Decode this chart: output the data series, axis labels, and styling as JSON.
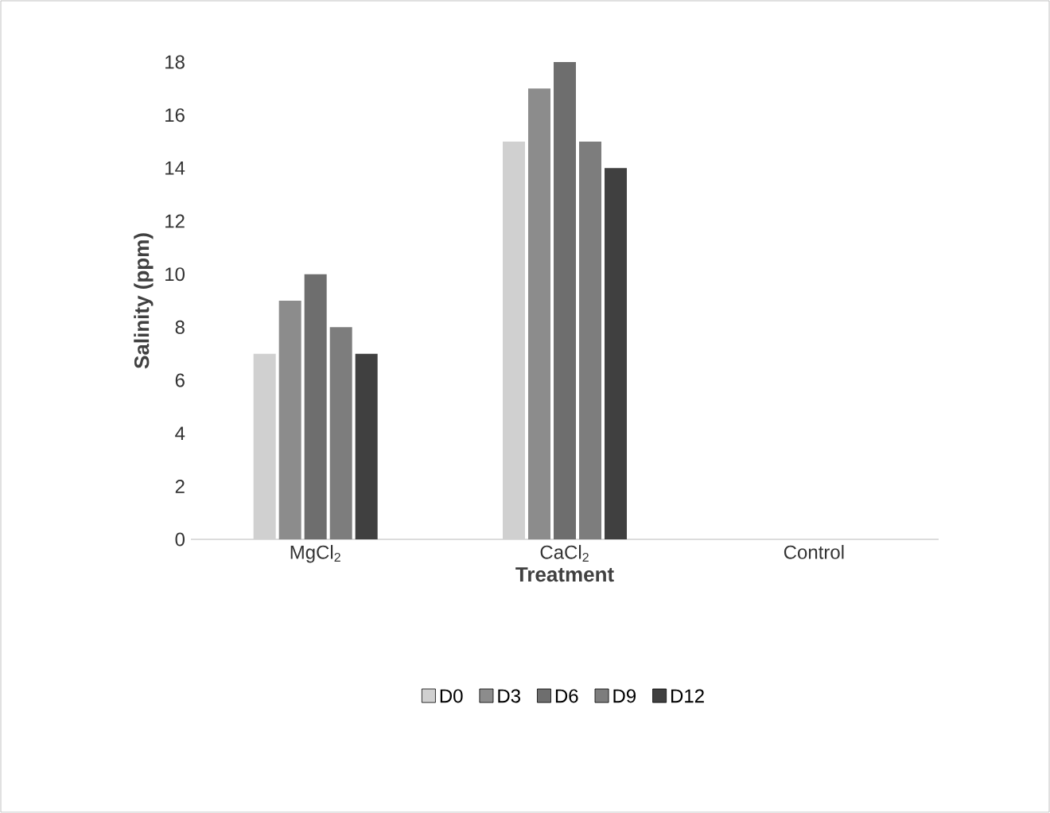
{
  "chart_data": {
    "type": "bar",
    "xlabel": "Treatment",
    "ylabel": "Salinity (ppm)",
    "categories": [
      "MgCl$_{2}$",
      "CaCl$_{2}$",
      "Control"
    ],
    "series": [
      {
        "name": "D0",
        "color": "#d0d0d0",
        "values": [
          7,
          15,
          0
        ]
      },
      {
        "name": "D3",
        "color": "#8c8c8c",
        "values": [
          9,
          17,
          0
        ]
      },
      {
        "name": "D6",
        "color": "#6e6e6e",
        "values": [
          10,
          18,
          0
        ]
      },
      {
        "name": "D9",
        "color": "#7d7d7d",
        "values": [
          8,
          15,
          0
        ]
      },
      {
        "name": "D12",
        "color": "#404040",
        "values": [
          7,
          14,
          0
        ]
      }
    ],
    "ylim": [
      0,
      18
    ],
    "yticks": [
      0,
      2,
      4,
      6,
      8,
      10,
      12,
      14,
      16,
      18
    ],
    "grid": false,
    "legend": "bottom"
  }
}
